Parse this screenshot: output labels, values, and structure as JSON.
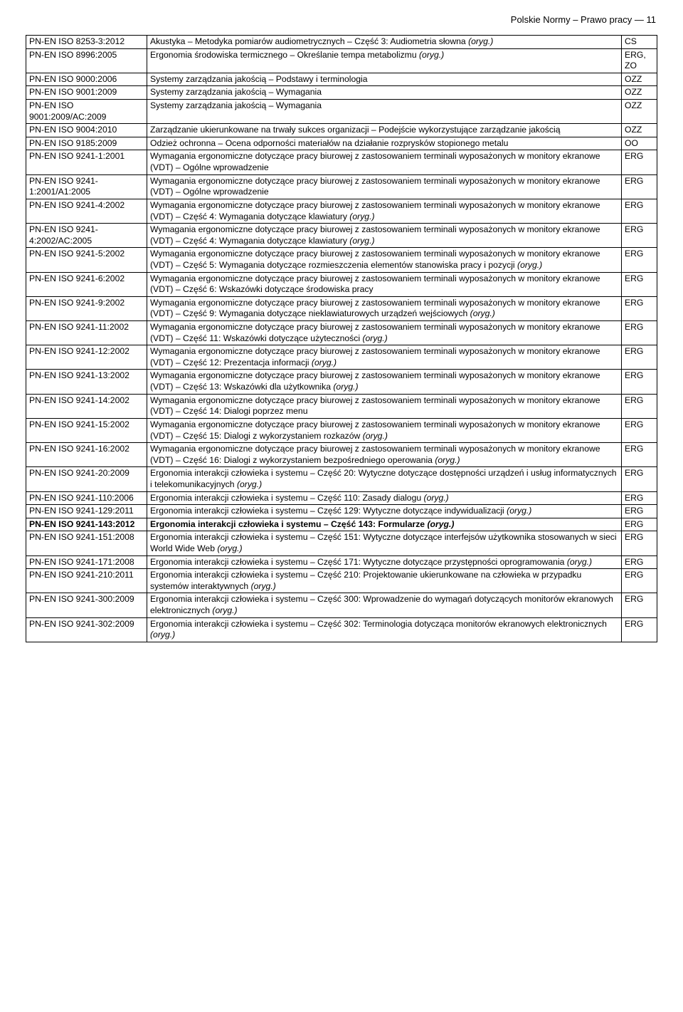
{
  "header": "Polskie Normy – Prawo pracy — 11",
  "rows": [
    {
      "code": "PN-EN ISO 8253-3:2012",
      "title": "Akustyka – Metodyka pomiarów audiometrycznych – Część 3: Audiometria słowna <span class='i'>(oryg.)</span>",
      "tag": "CS"
    },
    {
      "code": "PN-EN ISO 8996:2005",
      "title": "Ergonomia środowiska termicznego – Określanie tempa metabolizmu <span class='i'>(oryg.)</span>",
      "tag": "ERG, ZO"
    },
    {
      "code": "PN-EN ISO 9000:2006",
      "title": "Systemy zarządzania jakością – Podstawy i terminologia",
      "tag": "OZZ"
    },
    {
      "code": "PN-EN ISO 9001:2009",
      "title": "Systemy zarządzania jakością – Wymagania",
      "tag": "OZZ"
    },
    {
      "code": "PN-EN ISO 9001:2009/AC:2009",
      "title": "Systemy zarządzania jakością – Wymagania",
      "tag": "OZZ"
    },
    {
      "code": "PN-EN ISO 9004:2010",
      "title": "Zarządzanie ukierunkowane na trwały sukces organizacji – Podejście wykorzystujące zarządzanie jakością",
      "tag": "OZZ"
    },
    {
      "code": "PN-EN ISO 9185:2009",
      "title": "Odzież ochronna – Ocena odporności materiałów na działanie rozprysków stopionego metalu",
      "tag": "OO"
    },
    {
      "code": "PN-EN ISO 9241-1:2001",
      "title": "Wymagania ergonomiczne dotyczące pracy biurowej z zastosowaniem terminali wyposażonych w monitory ekranowe (VDT) – Ogólne wprowadzenie",
      "tag": "ERG"
    },
    {
      "code": "PN-EN ISO 9241-1:2001/A1:2005",
      "title": "Wymagania ergonomiczne dotyczące pracy biurowej z zastosowaniem terminali wyposażonych w monitory ekranowe (VDT) – Ogólne wprowadzenie",
      "tag": "ERG"
    },
    {
      "code": "PN-EN ISO 9241-4:2002",
      "title": "Wymagania ergonomiczne dotyczące pracy biurowej z zastosowaniem terminali wyposażonych w monitory ekranowe (VDT) – Część 4: Wymagania dotyczące klawiatury <span class='i'>(oryg.)</span>",
      "tag": "ERG"
    },
    {
      "code": "PN-EN ISO 9241-4:2002/AC:2005",
      "title": "Wymagania ergonomiczne dotyczące pracy biurowej z zastosowaniem terminali wyposażonych w monitory ekranowe (VDT) – Część 4: Wymagania dotyczące klawiatury <span class='i'>(oryg.)</span>",
      "tag": "ERG"
    },
    {
      "code": "PN-EN ISO 9241-5:2002",
      "title": "Wymagania ergonomiczne dotyczące pracy biurowej z zastosowaniem terminali wyposażonych w monitory ekranowe (VDT) – Część 5: Wymagania dotyczące rozmieszczenia elementów stanowiska pracy i pozycji <span class='i'>(oryg.)</span>",
      "tag": "ERG"
    },
    {
      "code": "PN-EN ISO 9241-6:2002",
      "title": "Wymagania ergonomiczne dotyczące pracy biurowej z zastosowaniem terminali wyposażonych w monitory ekranowe (VDT) – Część 6: Wskazówki dotyczące środowiska pracy",
      "tag": "ERG"
    },
    {
      "code": "PN-EN ISO 9241-9:2002",
      "title": "Wymagania ergonomiczne dotyczące pracy biurowej z zastosowaniem terminali wyposażonych w monitory ekranowe (VDT) – Część 9: Wymagania dotyczące nieklawiaturowych urządzeń wejściowych <span class='i'>(oryg.)</span>",
      "tag": "ERG"
    },
    {
      "code": "PN-EN ISO 9241-11:2002",
      "title": "Wymagania ergonomiczne dotyczące pracy biurowej z zastosowaniem terminali wyposażonych w monitory ekranowe (VDT) – Część 11: Wskazówki dotyczące użyteczności <span class='i'>(oryg.)</span>",
      "tag": "ERG"
    },
    {
      "code": "PN-EN ISO 9241-12:2002",
      "title": "Wymagania ergonomiczne dotyczące pracy biurowej z zastosowaniem terminali wyposażonych w monitory ekranowe (VDT) – Część 12: Prezentacja informacji <span class='i'>(oryg.)</span>",
      "tag": "ERG"
    },
    {
      "code": "PN-EN ISO 9241-13:2002",
      "title": "Wymagania ergonomiczne dotyczące pracy biurowej z zastosowaniem terminali wyposażonych w monitory ekranowe (VDT) – Część 13: Wskazówki dla użytkownika <span class='i'>(oryg.)</span>",
      "tag": "ERG"
    },
    {
      "code": "PN-EN ISO 9241-14:2002",
      "title": "Wymagania ergonomiczne dotyczące pracy biurowej z zastosowaniem terminali wyposażonych w monitory ekranowe (VDT) – Część 14: Dialogi poprzez menu",
      "tag": "ERG"
    },
    {
      "code": "PN-EN ISO 9241-15:2002",
      "title": "Wymagania ergonomiczne dotyczące pracy biurowej z zastosowaniem terminali wyposażonych w monitory ekranowe (VDT) – Część 15: Dialogi z wykorzystaniem rozkazów <span class='i'>(oryg.)</span>",
      "tag": "ERG"
    },
    {
      "code": "PN-EN ISO 9241-16:2002",
      "title": "Wymagania ergonomiczne dotyczące pracy biurowej z zastosowaniem terminali wyposażonych w monitory ekranowe (VDT) – Część 16: Dialogi z wykorzystaniem bezpośredniego operowania <span class='i'>(oryg.)</span>",
      "tag": "ERG"
    },
    {
      "code": "PN-EN ISO 9241-20:2009",
      "title": "Ergonomia interakcji człowieka i systemu – Część 20: Wytyczne dotyczące dostępności urządzeń i usług informatycznych i telekomunikacyjnych <span class='i'>(oryg.)</span>",
      "tag": "ERG"
    },
    {
      "code": "PN-EN ISO 9241-110:2006",
      "title": "Ergonomia interakcji człowieka i systemu – Część 110: Zasady dialogu <span class='i'>(oryg.)</span>",
      "tag": "ERG"
    },
    {
      "code": "PN-EN ISO 9241-129:2011",
      "title": "Ergonomia interakcji człowieka i systemu – Część 129: Wytyczne dotyczące indywidualizacji <span class='i'>(oryg.)</span>",
      "tag": "ERG"
    },
    {
      "code": "<span class='b'>PN-EN ISO 9241-143:2012</span>",
      "title": "<span class='b'>Ergonomia interakcji człowieka i systemu – Część 143: Formularze <span class='i'>(oryg.)</span></span>",
      "tag": "ERG"
    },
    {
      "code": "PN-EN ISO 9241-151:2008",
      "title": "Ergonomia interakcji człowieka i systemu – Część 151: Wytyczne dotyczące interfejsów użytkownika stosowanych w sieci World Wide Web <span class='i'>(oryg.)</span>",
      "tag": "ERG"
    },
    {
      "code": "PN-EN ISO 9241-171:2008",
      "title": "Ergonomia interakcji człowieka i systemu – Część 171: Wytyczne dotyczące przystępności oprogramowania <span class='i'>(oryg.)</span>",
      "tag": "ERG"
    },
    {
      "code": "PN-EN ISO 9241-210:2011",
      "title": "Ergonomia interakcji człowieka i systemu – Część 210: Projektowanie ukierunkowane na człowieka w przypadku systemów interaktywnych <span class='i'>(oryg.)</span>",
      "tag": "ERG"
    },
    {
      "code": "PN-EN ISO 9241-300:2009",
      "title": "Ergonomia interakcji człowieka i systemu – Część 300: Wprowadzenie do wymagań dotyczących monitorów ekranowych elektronicznych <span class='i'>(oryg.)</span>",
      "tag": "ERG"
    },
    {
      "code": "PN-EN ISO 9241-302:2009",
      "title": "Ergonomia interakcji człowieka i systemu – Część 302: Terminologia dotycząca monitorów ekranowych elektronicznych <span class='i'>(oryg.)</span>",
      "tag": "ERG"
    }
  ]
}
